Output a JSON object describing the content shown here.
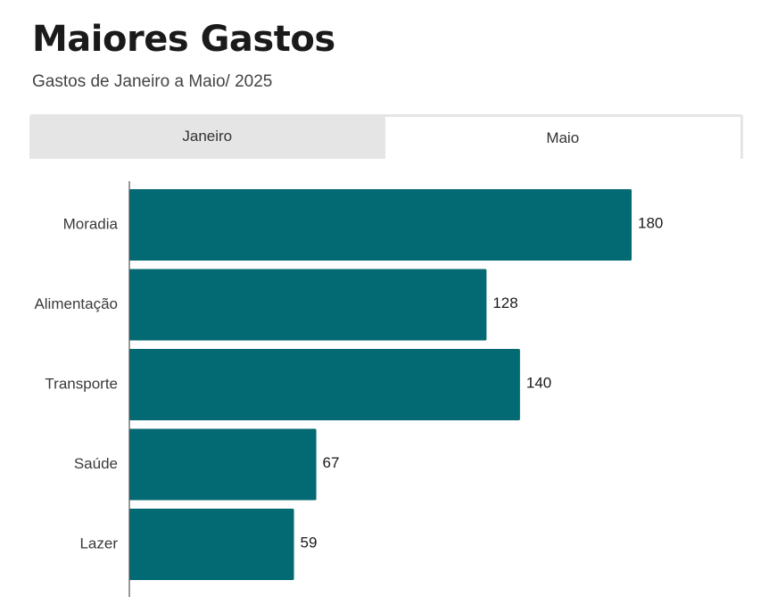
{
  "header": {
    "title": "Maiores Gastos",
    "subtitle": "Gastos de Janeiro a Maio/ 2025"
  },
  "tabs": [
    {
      "label": "Janeiro",
      "active": false
    },
    {
      "label": "Maio",
      "active": true
    }
  ],
  "colors": {
    "bar": "#036a73",
    "axis": "#555555",
    "tab_inactive_bg": "#e5e5e5"
  },
  "chart_data": {
    "type": "bar",
    "orientation": "horizontal",
    "categories": [
      "Moradia",
      "Alimentação",
      "Transporte",
      "Saúde",
      "Lazer"
    ],
    "values": [
      180,
      128,
      140,
      67,
      59
    ],
    "xlim": [
      0,
      200
    ],
    "grid": false,
    "legend": "none"
  }
}
